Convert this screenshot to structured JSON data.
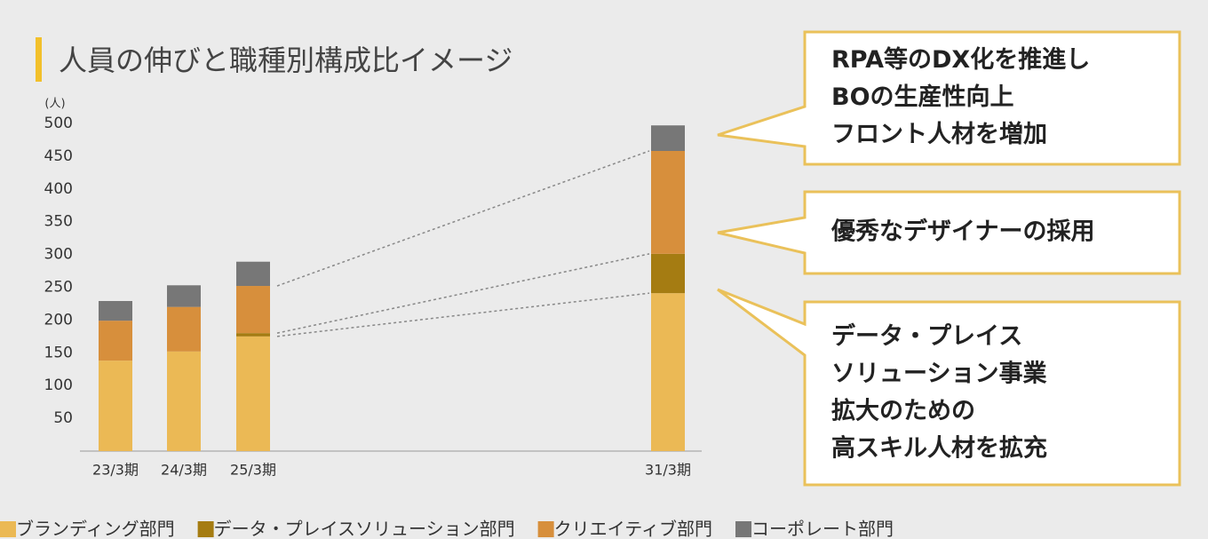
{
  "chart_data": {
    "type": "stacked_bar",
    "title": "人員の伸びと職種別構成比イメージ",
    "y_unit": "(人)",
    "categories": [
      "23/3期",
      "24/3期",
      "25/3期",
      "31/3期"
    ],
    "series": [
      {
        "name": "ブランディング部門",
        "color": "#ebb955",
        "values": [
          138,
          152,
          175,
          241
        ]
      },
      {
        "name": "データ・プレイスソリューション部門",
        "color": "#a57c12",
        "values": [
          0,
          0,
          5,
          60
        ]
      },
      {
        "name": "クリエイティブ部門",
        "color": "#d78f3c",
        "values": [
          61,
          68,
          72,
          157
        ]
      },
      {
        "name": "コーポレート部門",
        "color": "#777777",
        "values": [
          30,
          33,
          37,
          39
        ]
      }
    ],
    "ylim": [
      0,
      500
    ],
    "yticks": [
      50,
      100,
      150,
      200,
      250,
      300,
      350,
      400,
      450,
      500
    ],
    "annotations": [
      {
        "lines": [
          "RPA等のDX化を推進し",
          "BOの生産性向上",
          "フロント人材を増加"
        ]
      },
      {
        "lines": [
          "優秀なデザイナーの採用"
        ]
      },
      {
        "lines": [
          "データ・プレイス",
          "ソリューション事業",
          "拡大のための",
          "高スキル人材を拡充"
        ]
      }
    ]
  }
}
